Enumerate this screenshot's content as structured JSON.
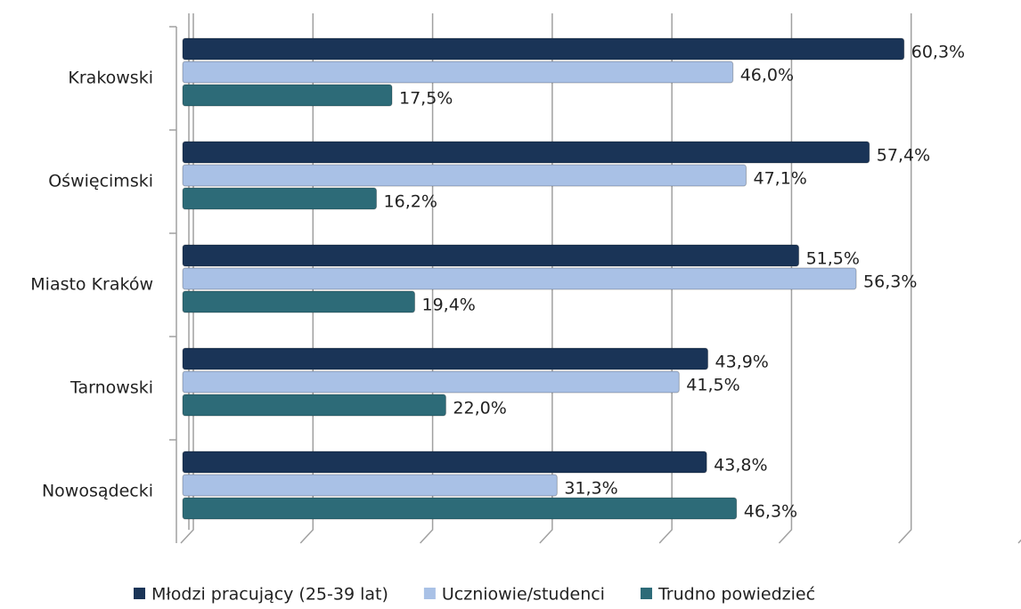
{
  "chart_data": {
    "type": "bar",
    "orientation": "horizontal",
    "categories": [
      "Krakowski",
      "Oświęcimski",
      "Miasto Kraków",
      "Tarnowski",
      "Nowosądecki"
    ],
    "series": [
      {
        "name": "Młodzi pracujący (25-39 lat)",
        "color": "#1a3457",
        "values": [
          60.3,
          57.4,
          51.5,
          43.9,
          43.8
        ],
        "value_labels": [
          "60,3%",
          "57,4%",
          "51,5%",
          "43,9%",
          "43,8%"
        ]
      },
      {
        "name": "Uczniowie/studenci",
        "color": "#a9c1e6",
        "values": [
          46.0,
          47.1,
          56.3,
          41.5,
          31.3
        ],
        "value_labels": [
          "46,0%",
          "47,1%",
          "56,3%",
          "41,5%",
          "31,3%"
        ]
      },
      {
        "name": "Trudno powiedzieć",
        "color": "#2d6b78",
        "values": [
          17.5,
          16.2,
          19.4,
          22.0,
          46.3
        ],
        "value_labels": [
          "17,5%",
          "16,2%",
          "19,4%",
          "22,0%",
          "46,3%"
        ]
      }
    ],
    "xlim": [
      0,
      70
    ],
    "xticks": [
      0,
      10,
      20,
      30,
      40,
      50,
      60,
      70
    ],
    "grid": true,
    "legend": "bottom"
  }
}
